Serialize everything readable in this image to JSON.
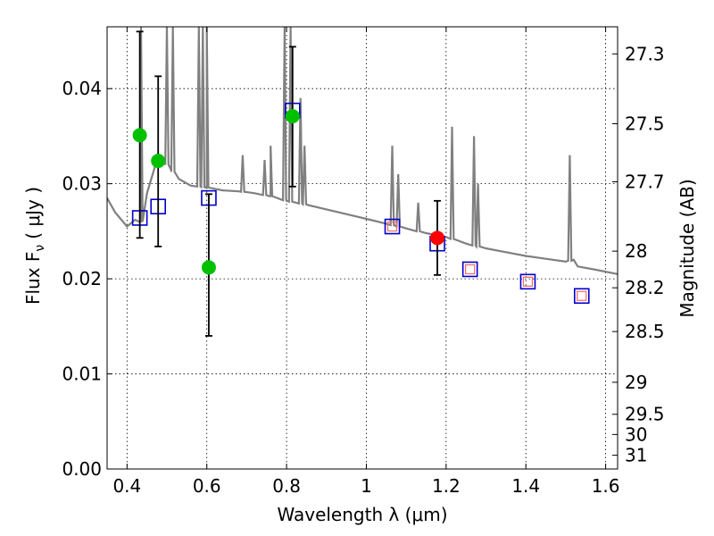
{
  "chart_data": {
    "type": "scatter",
    "xlabel": "Wavelength  λ (μm)",
    "ylabel": "Flux  F",
    "ylabel_sub": "ν",
    "ylabel_units": "( μJy )",
    "y2label": "Magnitude (AB)",
    "xlim": [
      0.35,
      1.63
    ],
    "ylim": [
      0.0,
      0.0465
    ],
    "x_ticks": [
      0.4,
      0.6,
      0.8,
      1.0,
      1.2,
      1.4,
      1.6
    ],
    "x_tick_labels": [
      "0.4",
      "0.6",
      "0.8",
      "1",
      "1.2",
      "1.4",
      "1.6"
    ],
    "y_ticks": [
      0.0,
      0.01,
      0.02,
      0.03,
      0.04
    ],
    "y_tick_labels": [
      "0.00",
      "0.01",
      "0.02",
      "0.03",
      "0.04"
    ],
    "mag_ticks": [
      27.3,
      27.5,
      27.7,
      28,
      28.2,
      28.5,
      29,
      29.5,
      30,
      31
    ],
    "mag_tick_labels": [
      "27.3",
      "27.5",
      "27.7",
      "28",
      "28.2",
      "28.5",
      "29",
      "29.5",
      "30",
      "31"
    ],
    "grid": true,
    "series": [
      {
        "name": "model-spectrum",
        "kind": "line",
        "color": "#808080",
        "continuum": [
          [
            0.35,
            0.0285
          ],
          [
            0.37,
            0.027
          ],
          [
            0.4,
            0.0255
          ],
          [
            0.42,
            0.0262
          ],
          [
            0.435,
            0.026
          ],
          [
            0.45,
            0.029
          ],
          [
            0.47,
            0.0318
          ],
          [
            0.49,
            0.0325
          ],
          [
            0.51,
            0.0315
          ],
          [
            0.53,
            0.0305
          ],
          [
            0.56,
            0.0298
          ],
          [
            0.6,
            0.0296
          ],
          [
            0.64,
            0.0293
          ],
          [
            0.68,
            0.0292
          ],
          [
            0.72,
            0.029
          ],
          [
            0.76,
            0.0287
          ],
          [
            0.8,
            0.0282
          ],
          [
            0.85,
            0.0278
          ],
          [
            0.9,
            0.0273
          ],
          [
            0.95,
            0.0268
          ],
          [
            1.0,
            0.0263
          ],
          [
            1.05,
            0.0258
          ],
          [
            1.1,
            0.0253
          ],
          [
            1.15,
            0.0248
          ],
          [
            1.2,
            0.0244
          ],
          [
            1.25,
            0.0237
          ],
          [
            1.3,
            0.0232
          ],
          [
            1.35,
            0.0228
          ],
          [
            1.4,
            0.0224
          ],
          [
            1.45,
            0.0221
          ],
          [
            1.5,
            0.0218
          ],
          [
            1.52,
            0.022
          ],
          [
            1.53,
            0.0213
          ],
          [
            1.57,
            0.021
          ],
          [
            1.63,
            0.0205
          ]
        ],
        "emission_lines": [
          [
            0.435,
            0.0465
          ],
          [
            0.5,
            0.0465
          ],
          [
            0.515,
            0.0465
          ],
          [
            0.58,
            0.0465
          ],
          [
            0.59,
            0.0465
          ],
          [
            0.6,
            0.0465
          ],
          [
            0.69,
            0.033
          ],
          [
            0.745,
            0.0325
          ],
          [
            0.76,
            0.034
          ],
          [
            0.795,
            0.0465
          ],
          [
            0.81,
            0.0465
          ],
          [
            0.835,
            0.039
          ],
          [
            0.845,
            0.034
          ],
          [
            1.065,
            0.034
          ],
          [
            1.08,
            0.031
          ],
          [
            1.13,
            0.028
          ],
          [
            1.215,
            0.036
          ],
          [
            1.27,
            0.035
          ],
          [
            1.28,
            0.03
          ],
          [
            1.51,
            0.033
          ]
        ]
      },
      {
        "name": "observed-green",
        "kind": "points",
        "color": "#00c000",
        "points": [
          {
            "x": 0.432,
            "y": 0.0351,
            "err_lo": 0.0243,
            "err_hi": 0.046
          },
          {
            "x": 0.478,
            "y": 0.0324,
            "err_lo": 0.0234,
            "err_hi": 0.0413
          },
          {
            "x": 0.605,
            "y": 0.0212,
            "err_lo": 0.014,
            "err_hi": 0.0289
          },
          {
            "x": 0.815,
            "y": 0.0371,
            "err_lo": 0.0297,
            "err_hi": 0.0444
          }
        ]
      },
      {
        "name": "observed-red",
        "kind": "points",
        "color": "#ff0000",
        "points": [
          {
            "x": 1.178,
            "y": 0.0243,
            "err_lo": 0.0204,
            "err_hi": 0.0282
          }
        ]
      },
      {
        "name": "model-photometry",
        "kind": "squares",
        "color": "#0000cc",
        "points": [
          {
            "x": 0.432,
            "y": 0.0264
          },
          {
            "x": 0.478,
            "y": 0.0276
          },
          {
            "x": 0.605,
            "y": 0.0285
          },
          {
            "x": 0.815,
            "y": 0.0377
          },
          {
            "x": 1.065,
            "y": 0.0255
          },
          {
            "x": 1.178,
            "y": 0.0237
          },
          {
            "x": 1.26,
            "y": 0.021
          },
          {
            "x": 1.405,
            "y": 0.0197
          },
          {
            "x": 1.54,
            "y": 0.0182
          }
        ]
      },
      {
        "name": "upper-limits",
        "kind": "small-squares",
        "color": "#ff6666",
        "points": [
          {
            "x": 1.065,
            "y": 0.0255
          },
          {
            "x": 1.26,
            "y": 0.021
          },
          {
            "x": 1.405,
            "y": 0.0197
          },
          {
            "x": 1.54,
            "y": 0.0182
          }
        ]
      }
    ]
  }
}
